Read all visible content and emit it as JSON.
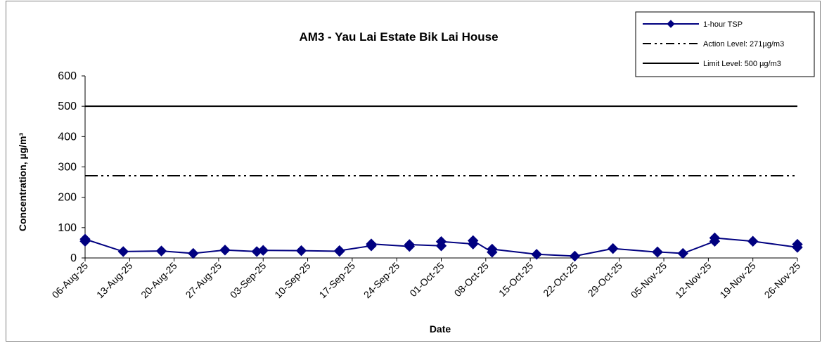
{
  "chart_data": {
    "type": "line",
    "title": "AM3 - Yau Lai Estate Bik Lai House",
    "xlabel": "Date",
    "ylabel": "Concentration, µg/m³",
    "ylim": [
      0,
      600
    ],
    "yticks": [
      0,
      100,
      200,
      300,
      400,
      500,
      600
    ],
    "xticks": [
      "06-Aug-25",
      "13-Aug-25",
      "20-Aug-25",
      "27-Aug-25",
      "03-Sep-25",
      "10-Sep-25",
      "17-Sep-25",
      "24-Sep-25",
      "01-Oct-25",
      "08-Oct-25",
      "15-Oct-25",
      "22-Oct-25",
      "29-Oct-25",
      "05-Nov-25",
      "12-Nov-25",
      "19-Nov-25",
      "26-Nov-25"
    ],
    "xrange": [
      "06-Aug-25",
      "26-Nov-25"
    ],
    "grid": false,
    "legend_position": "top-right",
    "series": [
      {
        "name": "1-hour TSP",
        "color": "#000080",
        "style": "line-diamond",
        "points": [
          {
            "x": "06-Aug-25",
            "y": 55
          },
          {
            "x": "06-Aug-25",
            "y": 62
          },
          {
            "x": "12-Aug-25",
            "y": 21
          },
          {
            "x": "18-Aug-25",
            "y": 23
          },
          {
            "x": "23-Aug-25",
            "y": 15
          },
          {
            "x": "28-Aug-25",
            "y": 26
          },
          {
            "x": "02-Sep-25",
            "y": 21
          },
          {
            "x": "03-Sep-25",
            "y": 25
          },
          {
            "x": "09-Sep-25",
            "y": 24
          },
          {
            "x": "15-Sep-25",
            "y": 22
          },
          {
            "x": "15-Sep-25",
            "y": 24
          },
          {
            "x": "20-Sep-25",
            "y": 40
          },
          {
            "x": "20-Sep-25",
            "y": 46
          },
          {
            "x": "26-Sep-25",
            "y": 38
          },
          {
            "x": "26-Sep-25",
            "y": 44
          },
          {
            "x": "01-Oct-25",
            "y": 40
          },
          {
            "x": "01-Oct-25",
            "y": 54
          },
          {
            "x": "06-Oct-25",
            "y": 46
          },
          {
            "x": "06-Oct-25",
            "y": 57
          },
          {
            "x": "09-Oct-25",
            "y": 19
          },
          {
            "x": "09-Oct-25",
            "y": 29
          },
          {
            "x": "16-Oct-25",
            "y": 12
          },
          {
            "x": "22-Oct-25",
            "y": 6
          },
          {
            "x": "28-Oct-25",
            "y": 31
          },
          {
            "x": "04-Nov-25",
            "y": 19
          },
          {
            "x": "04-Nov-25",
            "y": 20
          },
          {
            "x": "08-Nov-25",
            "y": 15
          },
          {
            "x": "13-Nov-25",
            "y": 55
          },
          {
            "x": "13-Nov-25",
            "y": 66
          },
          {
            "x": "19-Nov-25",
            "y": 55
          },
          {
            "x": "26-Nov-25",
            "y": 35
          },
          {
            "x": "26-Nov-25",
            "y": 45
          }
        ]
      },
      {
        "name": "Action Level:  271µg/m3",
        "color": "#000000",
        "style": "dash-dot-dot",
        "value": 271
      },
      {
        "name": "Limit Level: 500 µg/m3",
        "color": "#000000",
        "style": "solid",
        "value": 500
      }
    ]
  }
}
